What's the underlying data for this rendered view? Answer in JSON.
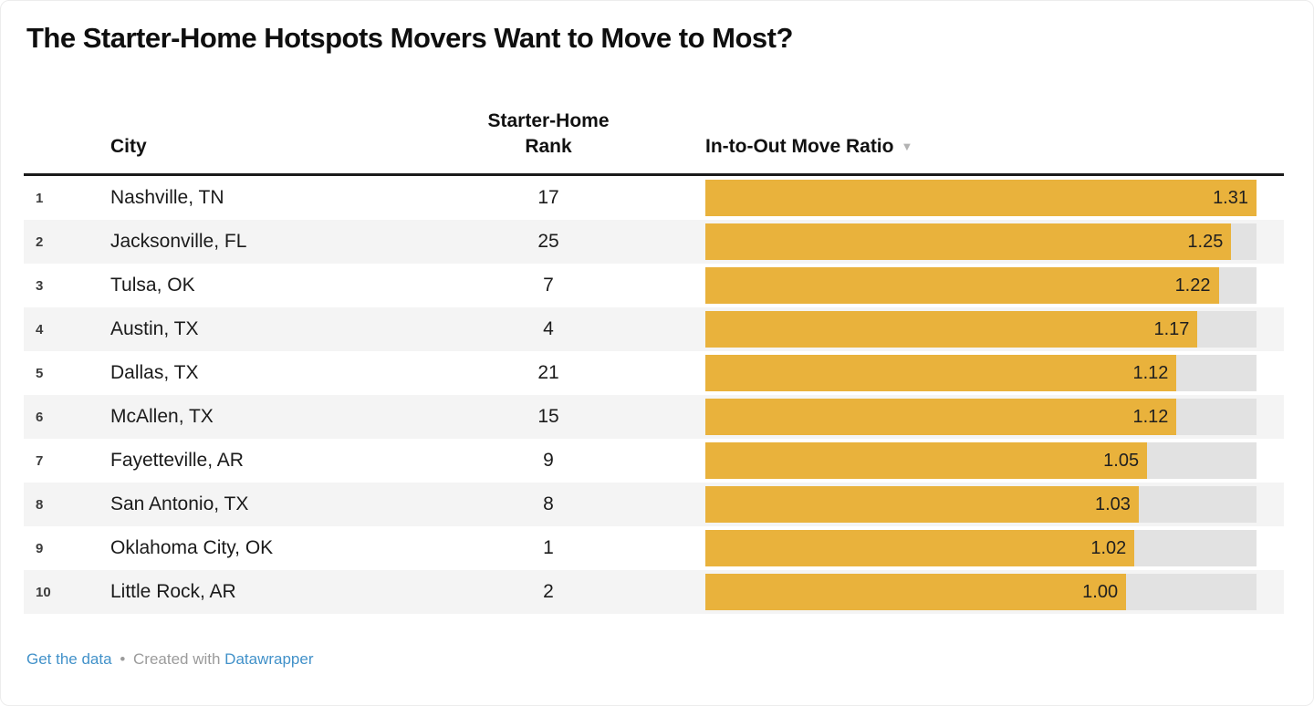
{
  "header": {
    "title": "The Starter-Home Hotspots Movers Want to Move to Most?"
  },
  "table": {
    "col_city": "City",
    "col_rank": "Starter-Home Rank",
    "col_ratio": "In-to-Out Move Ratio",
    "sort_icon": "▼",
    "rows": [
      {
        "index": "1",
        "city": "Nashville, TN",
        "rank": "17",
        "ratio_label": "1.31",
        "ratio": 1.31
      },
      {
        "index": "2",
        "city": "Jacksonville, FL",
        "rank": "25",
        "ratio_label": "1.25",
        "ratio": 1.25
      },
      {
        "index": "3",
        "city": "Tulsa, OK",
        "rank": "7",
        "ratio_label": "1.22",
        "ratio": 1.22
      },
      {
        "index": "4",
        "city": "Austin, TX",
        "rank": "4",
        "ratio_label": "1.17",
        "ratio": 1.17
      },
      {
        "index": "5",
        "city": "Dallas, TX",
        "rank": "21",
        "ratio_label": "1.12",
        "ratio": 1.12
      },
      {
        "index": "6",
        "city": "McAllen, TX",
        "rank": "15",
        "ratio_label": "1.12",
        "ratio": 1.12
      },
      {
        "index": "7",
        "city": "Fayetteville, AR",
        "rank": "9",
        "ratio_label": "1.05",
        "ratio": 1.05
      },
      {
        "index": "8",
        "city": "San Antonio, TX",
        "rank": "8",
        "ratio_label": "1.03",
        "ratio": 1.03
      },
      {
        "index": "9",
        "city": "Oklahoma City, OK",
        "rank": "1",
        "ratio_label": "1.02",
        "ratio": 1.02
      },
      {
        "index": "10",
        "city": "Little Rock, AR",
        "rank": "2",
        "ratio_label": "1.00",
        "ratio": 1.0
      }
    ]
  },
  "footer": {
    "get_data_link": "Get the data",
    "separator": "•",
    "created_with": "Created with",
    "brand_link": "Datawrapper"
  },
  "colors": {
    "bar": "#e9b23c",
    "bar_track": "#e2e2e2",
    "row_stripe": "#f4f4f4",
    "header_rule": "#1a1a1a",
    "link_blue": "#4191c9"
  },
  "chart_data": {
    "type": "bar",
    "orientation": "horizontal",
    "title": "The Starter-Home Hotspots Movers Want to Move to Most?",
    "categories": [
      "Nashville, TN",
      "Jacksonville, FL",
      "Tulsa, OK",
      "Austin, TX",
      "Dallas, TX",
      "McAllen, TX",
      "Fayetteville, AR",
      "San Antonio, TX",
      "Oklahoma City, OK",
      "Little Rock, AR"
    ],
    "series": [
      {
        "name": "Starter-Home Rank",
        "values": [
          17,
          25,
          7,
          4,
          21,
          15,
          9,
          8,
          1,
          2
        ]
      },
      {
        "name": "In-to-Out Move Ratio",
        "values": [
          1.31,
          1.25,
          1.22,
          1.17,
          1.12,
          1.12,
          1.05,
          1.03,
          1.02,
          1.0
        ]
      }
    ],
    "xlim": [
      0,
      1.31
    ],
    "grid": false,
    "legend": false,
    "sorted_by": "In-to-Out Move Ratio descending",
    "value_labels": "inside bar end, 2 decimals"
  }
}
